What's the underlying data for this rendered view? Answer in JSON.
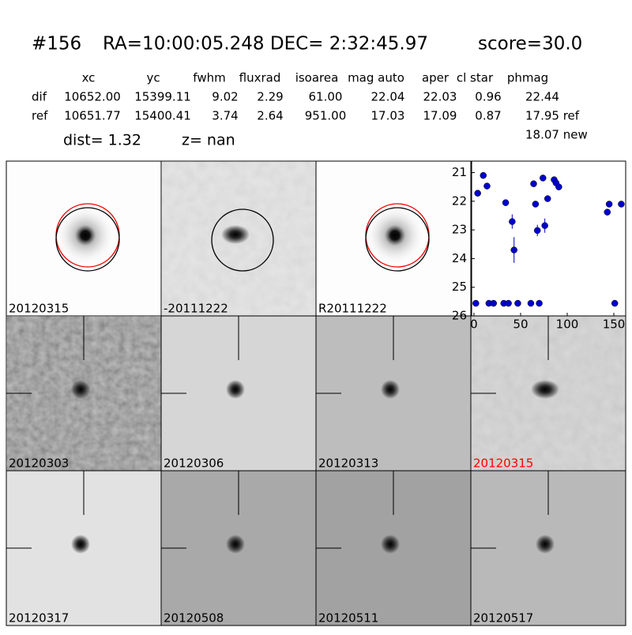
{
  "header": {
    "id": "#156",
    "coords": "RA=10:00:05.248 DEC= 2:32:45.97",
    "score": "score=30.0"
  },
  "table": {
    "columns": [
      "xc",
      "yc",
      "fwhm",
      "fluxrad",
      "isoarea",
      "mag auto",
      "aper",
      "cl star",
      "phmag"
    ],
    "rows": [
      [
        "dif",
        "10652.00",
        "15399.11",
        "9.02",
        "2.29",
        "61.00",
        "22.04",
        "22.03",
        "0.96",
        "22.44"
      ],
      [
        "ref",
        "10651.77",
        "15400.41",
        "3.74",
        "2.64",
        "951.00",
        "17.03",
        "17.09",
        "0.87",
        "17.95 ref"
      ]
    ],
    "extra": "18.07 new"
  },
  "dist": "dist=  1.32",
  "z": "z=   nan",
  "panels": [
    {
      "label": "20120315",
      "color": "#000000"
    },
    {
      "label": "-20111222",
      "color": "#000000"
    },
    {
      "label": "R20111222",
      "color": "#000000"
    },
    {
      "label": "20120303",
      "color": "#000000"
    },
    {
      "label": "20120306",
      "color": "#000000"
    },
    {
      "label": "20120313",
      "color": "#000000"
    },
    {
      "label": "20120315",
      "color": "#ff0000"
    },
    {
      "label": "20120317",
      "color": "#000000"
    },
    {
      "label": "20120508",
      "color": "#000000"
    },
    {
      "label": "20120511",
      "color": "#000000"
    },
    {
      "label": "20120517",
      "color": "#000000"
    }
  ],
  "chart_data": {
    "type": "scatter",
    "color": "#0000cc",
    "x": [
      2,
      4,
      10,
      14,
      16,
      21,
      32,
      34,
      37,
      41,
      43,
      47,
      61,
      64,
      66,
      68,
      70,
      74,
      76,
      79,
      86,
      88,
      91,
      143,
      145,
      151,
      158
    ],
    "y": [
      25.56,
      21.72,
      21.1,
      21.47,
      25.56,
      25.56,
      25.56,
      22.05,
      25.56,
      22.71,
      23.7,
      25.56,
      25.56,
      21.39,
      22.1,
      23.02,
      25.56,
      21.19,
      22.85,
      21.91,
      21.25,
      21.36,
      21.5,
      22.38,
      22.1,
      25.56,
      22.1
    ],
    "errors": [
      0.05,
      0.05,
      0.05,
      0.05,
      0.05,
      0.05,
      0.05,
      0.05,
      0.05,
      0.25,
      0.45,
      0.05,
      0.05,
      0.05,
      0.05,
      0.2,
      0.05,
      0.05,
      0.25,
      0.1,
      0.05,
      0.05,
      0.05,
      0.1,
      0.1,
      0.05,
      0.1
    ],
    "xlim": [
      -2.5,
      162.7
    ],
    "ylim": [
      20.6,
      26
    ],
    "xticks": [
      0,
      50,
      100,
      150
    ],
    "yticks": [
      21,
      22,
      23,
      24,
      25,
      26
    ]
  }
}
